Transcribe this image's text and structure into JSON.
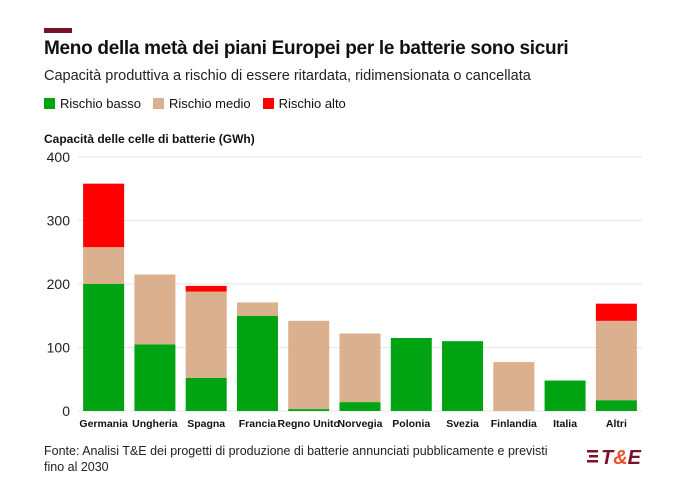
{
  "title": "Meno della metà dei piani Europei per le batterie sono sicuri",
  "subtitle": "Capacità produttiva a rischio di essere ritardata, ridimensionata o cancellata",
  "footer": "Fonte: Analisi T&E dei progetti di produzione di batterie annunciati pubblicamente e previsti fino al 2030",
  "logo_text": "T&E",
  "chart_data": {
    "type": "bar",
    "stacked": true,
    "ylabel": "Capacità delle celle di batterie (GWh)",
    "ylim": [
      0,
      400
    ],
    "yticks": [
      0,
      100,
      200,
      300,
      400
    ],
    "grid": true,
    "legend_position": "top-left",
    "categories": [
      "Germania",
      "Ungheria",
      "Spagna",
      "Francia",
      "Regno Unito",
      "Norvegia",
      "Polonia",
      "Svezia",
      "Finlandia",
      "Italia",
      "Altri"
    ],
    "series": [
      {
        "name": "Rischio basso",
        "color": "#00a312",
        "values": [
          200,
          105,
          52,
          150,
          3,
          14,
          115,
          110,
          0,
          48,
          17
        ]
      },
      {
        "name": "Rischio medio",
        "color": "#dbb08f",
        "values": [
          58,
          110,
          136,
          21,
          139,
          108,
          0,
          0,
          77,
          0,
          125
        ]
      },
      {
        "name": "Rischio alto",
        "color": "#ff0000",
        "values": [
          100,
          0,
          9,
          0,
          0,
          0,
          0,
          0,
          0,
          0,
          27
        ]
      }
    ]
  }
}
